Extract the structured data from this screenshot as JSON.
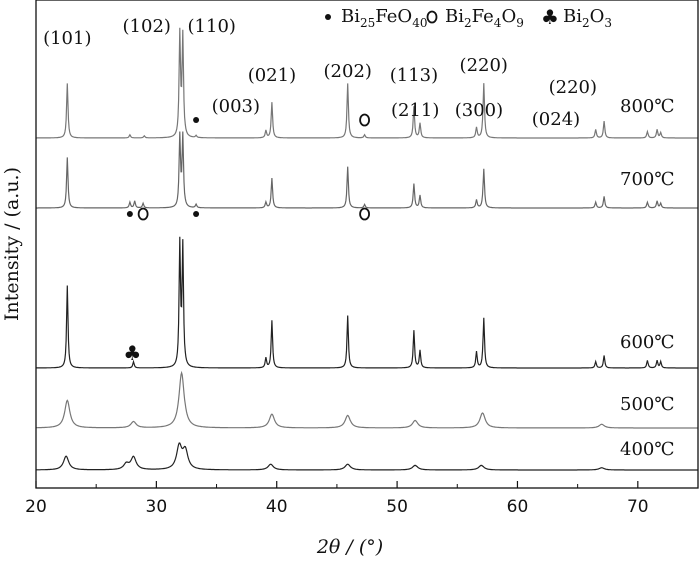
{
  "chart_data": {
    "type": "line",
    "xlabel": "2θ / (°)",
    "ylabel": "Intensity / (a.u.)",
    "xlim": [
      20,
      75
    ],
    "x_ticks": [
      20,
      30,
      40,
      50,
      60,
      70
    ],
    "grid": false,
    "legend": {
      "placement": "top",
      "items": [
        {
          "symbol": "dot",
          "label": "Bi25FeO40"
        },
        {
          "symbol": "circle",
          "label": "Bi2Fe4O9"
        },
        {
          "symbol": "club",
          "label": "Bi2O3"
        }
      ]
    },
    "series": [
      {
        "name": "800℃",
        "color": "#777777",
        "peaks": [
          [
            22.6,
            52
          ],
          [
            27.8,
            3
          ],
          [
            29.0,
            2
          ],
          [
            31.95,
            98
          ],
          [
            32.2,
            96
          ],
          [
            33.3,
            2
          ],
          [
            39.1,
            7
          ],
          [
            39.6,
            34
          ],
          [
            45.9,
            52
          ],
          [
            47.3,
            3
          ],
          [
            51.4,
            30
          ],
          [
            51.9,
            14
          ],
          [
            56.6,
            10
          ],
          [
            57.2,
            52
          ],
          [
            66.5,
            8
          ],
          [
            67.2,
            16
          ],
          [
            70.8,
            6
          ],
          [
            71.6,
            8
          ],
          [
            71.9,
            5
          ]
        ]
      },
      {
        "name": "700℃",
        "color": "#666666",
        "peaks": [
          [
            22.6,
            44
          ],
          [
            27.8,
            5
          ],
          [
            28.2,
            6
          ],
          [
            28.9,
            4
          ],
          [
            31.95,
            62
          ],
          [
            32.2,
            62
          ],
          [
            33.3,
            3
          ],
          [
            39.1,
            5
          ],
          [
            39.6,
            26
          ],
          [
            45.9,
            36
          ],
          [
            47.3,
            3
          ],
          [
            51.4,
            21
          ],
          [
            51.9,
            11
          ],
          [
            56.6,
            7
          ],
          [
            57.2,
            34
          ],
          [
            66.5,
            5
          ],
          [
            67.2,
            10
          ],
          [
            70.8,
            5
          ],
          [
            71.6,
            6
          ],
          [
            71.9,
            4
          ]
        ]
      },
      {
        "name": "600℃",
        "color": "#222222",
        "peaks": [
          [
            22.6,
            66
          ],
          [
            28.1,
            5
          ],
          [
            31.95,
            98
          ],
          [
            32.2,
            96
          ],
          [
            39.1,
            8
          ],
          [
            39.6,
            38
          ],
          [
            45.9,
            42
          ],
          [
            51.4,
            30
          ],
          [
            51.9,
            14
          ],
          [
            56.6,
            13
          ],
          [
            57.2,
            40
          ],
          [
            66.5,
            5
          ],
          [
            67.2,
            10
          ],
          [
            70.8,
            6
          ],
          [
            71.6,
            6
          ],
          [
            71.9,
            5
          ]
        ]
      },
      {
        "name": "500℃",
        "color": "#777777",
        "peaks": [
          [
            22.6,
            22
          ],
          [
            28.1,
            5
          ],
          [
            32.1,
            44
          ],
          [
            39.6,
            11
          ],
          [
            45.9,
            10
          ],
          [
            51.5,
            6
          ],
          [
            57.1,
            12
          ],
          [
            67.0,
            3
          ]
        ]
      },
      {
        "name": "400℃",
        "color": "#222222",
        "peaks": [
          [
            22.5,
            12
          ],
          [
            27.5,
            5
          ],
          [
            28.1,
            11
          ],
          [
            31.9,
            20
          ],
          [
            32.4,
            16
          ],
          [
            39.5,
            5
          ],
          [
            45.9,
            5
          ],
          [
            51.5,
            4
          ],
          [
            57.0,
            4
          ],
          [
            67.0,
            2
          ]
        ]
      }
    ],
    "annotations": [
      {
        "text": "(101)",
        "x": 22.6
      },
      {
        "text": "(102)",
        "x": 29.2
      },
      {
        "text": "(110)",
        "x": 34.6
      },
      {
        "text": "(003)",
        "x": 36.6
      },
      {
        "text": "(021)",
        "x": 39.6
      },
      {
        "text": "(202)",
        "x": 45.9
      },
      {
        "text": "(113)",
        "x": 51.4
      },
      {
        "text": "(211)",
        "x": 51.5
      },
      {
        "text": "(300)",
        "x": 56.8
      },
      {
        "text": "(220)",
        "x": 57.2
      },
      {
        "text": "(024)",
        "x": 63.2
      },
      {
        "text": "(220)",
        "x": 64.6
      }
    ],
    "phase_markers": [
      {
        "series": "800℃",
        "phase": "Bi25FeO40",
        "x": 33.3
      },
      {
        "series": "800℃",
        "phase": "Bi2Fe4O9",
        "x": 47.3
      },
      {
        "series": "700℃",
        "phase": "Bi25FeO40",
        "x": 27.8
      },
      {
        "series": "700℃",
        "phase": "Bi2Fe4O9",
        "x": 28.9
      },
      {
        "series": "700℃",
        "phase": "Bi25FeO40",
        "x": 33.3
      },
      {
        "series": "700℃",
        "phase": "Bi2Fe4O9",
        "x": 47.3
      },
      {
        "series": "600℃",
        "phase": "Bi2O3",
        "x": 28.0
      }
    ]
  }
}
